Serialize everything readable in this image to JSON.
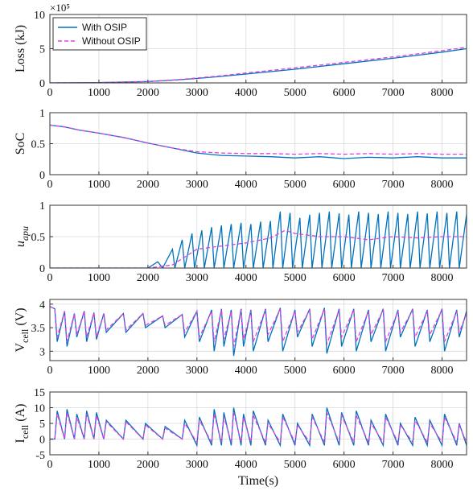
{
  "figure": {
    "xlabel": "Time(s)",
    "legend": {
      "location": "top-left",
      "entries": [
        {
          "label": "With OSIP",
          "color": "#0072BD",
          "style": "solid"
        },
        {
          "label": "Without OSIP",
          "color": "#E040E0",
          "style": "dashed"
        }
      ]
    }
  },
  "chart_data": [
    {
      "type": "line",
      "ylabel": "Loss (kJ)",
      "exponent_label": "×10⁵",
      "xlim": [
        0,
        8500
      ],
      "ylim": [
        0,
        10
      ],
      "xticks": [
        0,
        1000,
        2000,
        3000,
        4000,
        5000,
        6000,
        7000,
        8000
      ],
      "yticks": [
        0,
        5,
        10
      ],
      "grid": true,
      "series": [
        {
          "name": "With OSIP",
          "color": "#0072BD",
          "style": "solid",
          "x": [
            0,
            1000,
            2000,
            2500,
            3000,
            3500,
            4000,
            5000,
            6000,
            7000,
            8000,
            8500
          ],
          "y": [
            0,
            0.05,
            0.2,
            0.4,
            0.65,
            0.95,
            1.3,
            2.0,
            2.8,
            3.6,
            4.5,
            5.0
          ]
        },
        {
          "name": "Without OSIP",
          "color": "#E040E0",
          "style": "dashed",
          "x": [
            0,
            1000,
            2000,
            2500,
            3000,
            3500,
            4000,
            5000,
            6000,
            7000,
            8000,
            8500
          ],
          "y": [
            0,
            0.05,
            0.2,
            0.42,
            0.72,
            1.05,
            1.45,
            2.2,
            3.0,
            3.8,
            4.7,
            5.2
          ]
        }
      ]
    },
    {
      "type": "line",
      "ylabel": "SoC",
      "xlim": [
        0,
        8500
      ],
      "ylim": [
        0,
        1
      ],
      "xticks": [
        0,
        1000,
        2000,
        3000,
        4000,
        5000,
        6000,
        7000,
        8000
      ],
      "yticks": [
        0,
        0.5,
        1
      ],
      "grid": true,
      "series": [
        {
          "name": "With OSIP",
          "color": "#0072BD",
          "style": "solid",
          "x": [
            0,
            300,
            600,
            1000,
            1500,
            2000,
            2500,
            3000,
            3500,
            4000,
            4500,
            5000,
            5500,
            6000,
            6500,
            7000,
            7500,
            8000,
            8500
          ],
          "y": [
            0.8,
            0.77,
            0.72,
            0.67,
            0.6,
            0.51,
            0.43,
            0.35,
            0.31,
            0.3,
            0.29,
            0.27,
            0.29,
            0.26,
            0.28,
            0.27,
            0.29,
            0.27,
            0.27
          ]
        },
        {
          "name": "Without OSIP",
          "color": "#E040E0",
          "style": "dashed",
          "x": [
            0,
            300,
            600,
            1000,
            1500,
            2000,
            2500,
            3000,
            3500,
            4000,
            4500,
            5000,
            5500,
            6000,
            6500,
            7000,
            7500,
            8000,
            8500
          ],
          "y": [
            0.8,
            0.77,
            0.72,
            0.67,
            0.6,
            0.51,
            0.43,
            0.37,
            0.35,
            0.34,
            0.34,
            0.33,
            0.34,
            0.33,
            0.34,
            0.33,
            0.34,
            0.33,
            0.33
          ]
        }
      ]
    },
    {
      "type": "line",
      "ylabel": "u_apu",
      "ylabel_main": "u",
      "ylabel_sub": "apu",
      "xlim": [
        0,
        8500
      ],
      "ylim": [
        0,
        1
      ],
      "xticks": [
        0,
        1000,
        2000,
        3000,
        4000,
        5000,
        6000,
        7000,
        8000
      ],
      "yticks": [
        0,
        0.5,
        1
      ],
      "grid": true,
      "series": [
        {
          "name": "With OSIP",
          "color": "#0072BD",
          "style": "solid",
          "x": [
            0,
            2000,
            2200,
            2300,
            2500,
            2550,
            2700,
            2750,
            2900,
            2950,
            3100,
            3150,
            3300,
            3350,
            3500,
            3550,
            3700,
            3750,
            3900,
            3950,
            4100,
            4150,
            4300,
            4350,
            4500,
            4550,
            4700,
            4750,
            4900,
            4950,
            5100,
            5150,
            5300,
            5350,
            5500,
            5550,
            5700,
            5750,
            5900,
            5950,
            6100,
            6150,
            6300,
            6350,
            6500,
            6550,
            6700,
            6750,
            6900,
            6950,
            7100,
            7150,
            7300,
            7350,
            7500,
            7550,
            7700,
            7750,
            7900,
            7950,
            8100,
            8150,
            8300,
            8350,
            8500
          ],
          "y": [
            0,
            0,
            0.1,
            0,
            0.3,
            0,
            0.45,
            0,
            0.55,
            0,
            0.6,
            0,
            0.65,
            0,
            0.68,
            0,
            0.7,
            0,
            0.72,
            0,
            0.7,
            0,
            0.74,
            0,
            0.75,
            0,
            0.9,
            0,
            0.88,
            0,
            0.8,
            0,
            0.85,
            0,
            0.88,
            0,
            0.9,
            0,
            0.87,
            0,
            0.85,
            0,
            0.9,
            0,
            0.88,
            0,
            0.86,
            0,
            0.9,
            0,
            0.88,
            0,
            0.86,
            0,
            0.9,
            0,
            0.87,
            0,
            0.9,
            0,
            0.88,
            0,
            0.9,
            0,
            0.85
          ]
        },
        {
          "name": "Without OSIP",
          "color": "#E040E0",
          "style": "dashed",
          "x": [
            0,
            2000,
            2500,
            3000,
            3500,
            4000,
            4500,
            4800,
            5000,
            5500,
            6000,
            6500,
            7000,
            7500,
            8000,
            8500
          ],
          "y": [
            0,
            0,
            0.05,
            0.3,
            0.35,
            0.4,
            0.48,
            0.6,
            0.55,
            0.5,
            0.5,
            0.45,
            0.5,
            0.48,
            0.5,
            0.5
          ]
        }
      ]
    },
    {
      "type": "line",
      "ylabel": "V_cell (V)",
      "ylabel_main": "V",
      "ylabel_sub": "cell",
      "ylabel_suffix": " (V)",
      "xlim": [
        0,
        8500
      ],
      "ylim": [
        2.8,
        4.1
      ],
      "xticks": [
        0,
        1000,
        2000,
        3000,
        4000,
        5000,
        6000,
        7000,
        8000
      ],
      "yticks": [
        3,
        3.5,
        4
      ],
      "grid": true,
      "series": [
        {
          "name": "With OSIP",
          "color": "#0072BD",
          "style": "solid",
          "x": [
            0,
            100,
            150,
            300,
            350,
            500,
            550,
            700,
            750,
            900,
            950,
            1100,
            1150,
            1500,
            1550,
            1900,
            1950,
            2300,
            2350,
            2700,
            2750,
            3000,
            3050,
            3300,
            3350,
            3500,
            3550,
            3700,
            3750,
            3900,
            3950,
            4100,
            4150,
            4400,
            4450,
            4700,
            4750,
            5000,
            5050,
            5300,
            5350,
            5600,
            5650,
            5900,
            5950,
            6200,
            6250,
            6500,
            6550,
            6800,
            6850,
            7100,
            7150,
            7400,
            7450,
            7700,
            7750,
            8000,
            8050,
            8300,
            8350,
            8500
          ],
          "y": [
            3.95,
            3.9,
            3.2,
            3.85,
            3.1,
            3.8,
            3.3,
            3.85,
            3.2,
            3.82,
            3.25,
            3.8,
            3.4,
            3.8,
            3.4,
            3.8,
            3.5,
            3.75,
            3.5,
            3.78,
            3.3,
            3.85,
            3.2,
            3.88,
            3.0,
            3.9,
            3.1,
            3.88,
            2.9,
            3.9,
            3.1,
            3.88,
            3.0,
            3.9,
            3.2,
            3.92,
            3.0,
            3.88,
            3.3,
            3.9,
            3.1,
            3.92,
            2.95,
            3.9,
            3.1,
            3.9,
            3.0,
            3.88,
            3.2,
            3.9,
            3.0,
            3.88,
            3.3,
            3.9,
            3.1,
            3.88,
            3.2,
            3.9,
            3.0,
            3.88,
            3.3,
            3.85
          ]
        },
        {
          "name": "Without OSIP",
          "color": "#E040E0",
          "style": "dashed",
          "x": [
            0,
            100,
            150,
            300,
            350,
            500,
            550,
            700,
            750,
            900,
            950,
            1100,
            1150,
            1500,
            1550,
            1900,
            1950,
            2300,
            2350,
            2700,
            2750,
            3000,
            3050,
            3300,
            3350,
            3500,
            3550,
            3700,
            3750,
            3900,
            3950,
            4100,
            4150,
            4400,
            4450,
            4700,
            4750,
            5000,
            5050,
            5300,
            5350,
            5600,
            5650,
            5900,
            5950,
            6200,
            6250,
            6500,
            6550,
            6800,
            6850,
            7100,
            7150,
            7400,
            7450,
            7700,
            7750,
            8000,
            8050,
            8300,
            8350,
            8500
          ],
          "y": [
            3.95,
            3.9,
            3.3,
            3.85,
            3.2,
            3.8,
            3.35,
            3.85,
            3.3,
            3.82,
            3.3,
            3.8,
            3.45,
            3.8,
            3.45,
            3.8,
            3.55,
            3.75,
            3.55,
            3.78,
            3.4,
            3.85,
            3.3,
            3.85,
            3.2,
            3.88,
            3.25,
            3.85,
            3.1,
            3.88,
            3.25,
            3.85,
            3.2,
            3.88,
            3.35,
            3.9,
            3.2,
            3.85,
            3.4,
            3.88,
            3.25,
            3.9,
            3.15,
            3.88,
            3.3,
            3.88,
            3.2,
            3.85,
            3.35,
            3.88,
            3.2,
            3.85,
            3.4,
            3.88,
            3.3,
            3.85,
            3.35,
            3.88,
            3.2,
            3.85,
            3.4,
            3.8
          ]
        }
      ]
    },
    {
      "type": "line",
      "ylabel": "I_cell (A)",
      "ylabel_main": "I",
      "ylabel_sub": "cell",
      "ylabel_suffix": " (A)",
      "xlim": [
        0,
        8500
      ],
      "ylim": [
        -5,
        15
      ],
      "xticks": [
        0,
        1000,
        2000,
        3000,
        4000,
        5000,
        6000,
        7000,
        8000
      ],
      "yticks": [
        -5,
        0,
        5,
        10,
        15
      ],
      "grid": true,
      "series": [
        {
          "name": "With OSIP",
          "color": "#0072BD",
          "style": "solid",
          "x": [
            0,
            100,
            150,
            300,
            350,
            500,
            550,
            700,
            750,
            900,
            950,
            1100,
            1150,
            1500,
            1550,
            1900,
            1950,
            2300,
            2350,
            2700,
            2750,
            3000,
            3050,
            3300,
            3350,
            3500,
            3550,
            3700,
            3750,
            3900,
            3950,
            4100,
            4150,
            4400,
            4450,
            4700,
            4750,
            5000,
            5050,
            5300,
            5350,
            5600,
            5650,
            5900,
            5950,
            6200,
            6250,
            6500,
            6550,
            6800,
            6850,
            7100,
            7150,
            7400,
            7450,
            7700,
            7750,
            8000,
            8050,
            8300,
            8350,
            8500
          ],
          "y": [
            0,
            0,
            9,
            0,
            9.5,
            0,
            8,
            0,
            9,
            0,
            8.5,
            0,
            6,
            0,
            6,
            0,
            5,
            0,
            4,
            0,
            6,
            -2,
            7,
            -2,
            9.5,
            -2,
            8.5,
            -2,
            10,
            -2,
            8,
            -2,
            9,
            -2,
            6,
            -2,
            8,
            -2,
            5,
            -2,
            8,
            -2,
            10,
            -2,
            8.5,
            -2,
            9,
            -2,
            6,
            -2,
            8,
            -2,
            5,
            -2,
            7,
            -2,
            6,
            -2,
            8,
            -2,
            5,
            -2
          ]
        },
        {
          "name": "Without OSIP",
          "color": "#E040E0",
          "style": "dashed",
          "x": [
            0,
            100,
            150,
            300,
            350,
            500,
            550,
            700,
            750,
            900,
            950,
            1100,
            1150,
            1500,
            1550,
            1900,
            1950,
            2300,
            2350,
            2700,
            2750,
            3000,
            3050,
            3300,
            3350,
            3500,
            3550,
            3700,
            3750,
            3900,
            3950,
            4100,
            4150,
            4400,
            4450,
            4700,
            4750,
            5000,
            5050,
            5300,
            5350,
            5600,
            5650,
            5900,
            5950,
            6200,
            6250,
            6500,
            6550,
            6800,
            6850,
            7100,
            7150,
            7400,
            7450,
            7700,
            7750,
            8000,
            8050,
            8300,
            8350,
            8500
          ],
          "y": [
            0,
            0,
            8,
            0,
            8.5,
            0,
            7,
            0,
            8,
            0,
            7.5,
            0,
            5.5,
            0,
            5.5,
            0,
            4.5,
            0,
            3.5,
            0,
            5,
            -1,
            6,
            -1,
            8,
            -1,
            7,
            -1,
            8.5,
            -1,
            7,
            -1,
            7.5,
            -1,
            5,
            -1,
            7,
            -1,
            4.5,
            -1,
            7,
            -1,
            8.5,
            -1,
            7.5,
            -1,
            7.5,
            -1,
            5,
            -1,
            7,
            -1,
            4.5,
            -1,
            6,
            -1,
            5,
            -1,
            7,
            -1,
            4.5,
            -1
          ]
        }
      ]
    }
  ]
}
